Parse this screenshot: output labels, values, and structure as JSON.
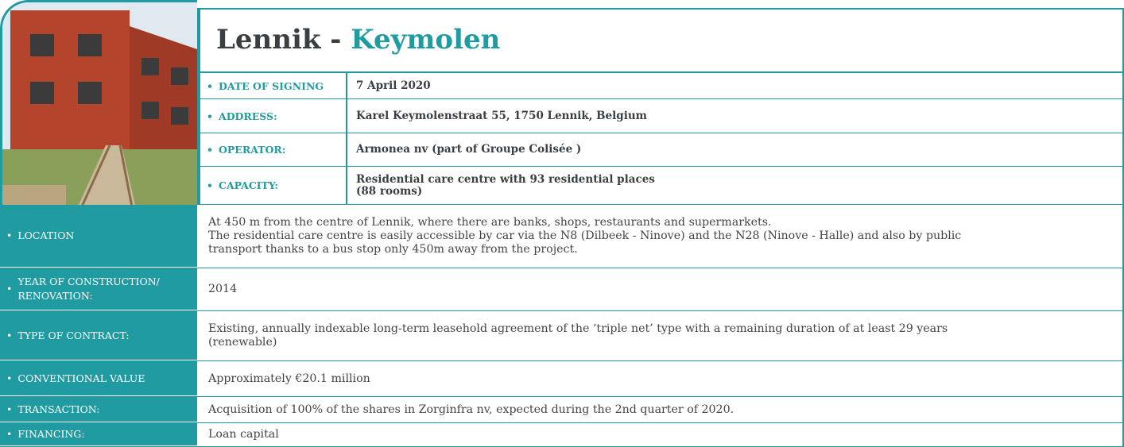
{
  "title": {
    "part1": "Lennik - ",
    "part2": "Keymolen"
  },
  "top_rows": [
    {
      "label": "DATE OF SIGNING",
      "value": [
        "7 April 2020"
      ]
    },
    {
      "label": "ADDRESS:",
      "value": [
        "Karel Keymolenstraat 55, 1750 Lennik, Belgium"
      ]
    },
    {
      "label": "OPERATOR:",
      "value": [
        "Armonea nv (part of Groupe Colisée )"
      ]
    },
    {
      "label": "CAPACITY:",
      "value": [
        "Residential care centre with 93 residential places",
        "(88 rooms)"
      ]
    }
  ],
  "rows": [
    {
      "label": [
        "LOCATION"
      ],
      "value": [
        "At 450 m from the centre of Lennik, where there are banks, shops, restaurants and supermarkets.",
        "The residential care centre is easily accessible by car via the N8 (Dilbeek - Ninove) and the N28 (Ninove - Halle) and also by public",
        "transport thanks to a bus stop only 450m away from the project."
      ]
    },
    {
      "label": [
        "YEAR OF CONSTRUCTION/",
        "RENOVATION:"
      ],
      "value": [
        "2014"
      ]
    },
    {
      "label": [
        "TYPE OF CONTRACT:"
      ],
      "value": [
        "Existing, annually indexable long-term leasehold agreement of the ‘triple net’ type with a remaining duration of at least 29 years",
        "(renewable)"
      ]
    },
    {
      "label": [
        "CONVENTIONAL VALUE"
      ],
      "value": [
        "Approximately €20.1 million"
      ]
    },
    {
      "label": [
        "TRANSACTION:"
      ],
      "value": [
        "Acquisition of 100% of the shares in Zorginfra nv, expected during the 2nd quarter of 2020."
      ]
    },
    {
      "label": [
        "FINANCING:"
      ],
      "value": [
        "Loan capital"
      ]
    }
  ]
}
